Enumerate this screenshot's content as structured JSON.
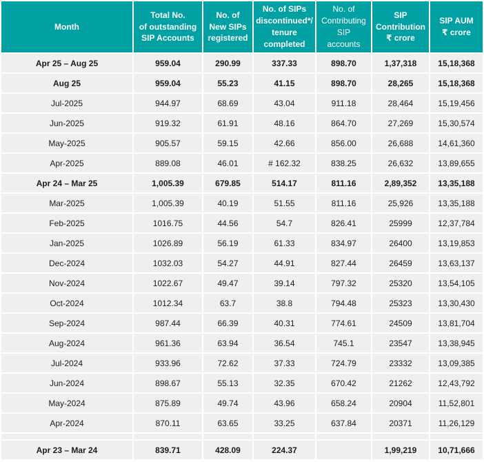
{
  "chart_data": {
    "type": "table",
    "columns": [
      {
        "id": "month",
        "lines": [
          "Month"
        ]
      },
      {
        "id": "outstanding",
        "lines": [
          "Total No.",
          "of outstanding",
          "SIP Accounts"
        ]
      },
      {
        "id": "new_sips",
        "lines": [
          "No. of",
          "New SIPs",
          "registered"
        ]
      },
      {
        "id": "discontinued",
        "lines": [
          "No. of SIPs",
          "discontinued*/",
          "tenure",
          "completed"
        ]
      },
      {
        "id": "contributing",
        "lines": [
          "No. of",
          "Contributing",
          "SIP",
          "accounts"
        ]
      },
      {
        "id": "contribution",
        "lines": [
          "SIP",
          "Contribution",
          "₹ crore"
        ]
      },
      {
        "id": "aum",
        "lines": [
          "SIP AUM",
          "₹ crore"
        ]
      }
    ],
    "rows": [
      {
        "month": "Apr 25 – Aug 25",
        "values": [
          "959.04",
          "290.99",
          "337.33",
          "898.70",
          "1,37,318",
          "15,18,368"
        ],
        "bold": true
      },
      {
        "month": "Aug 25",
        "values": [
          "959.04",
          "55.23",
          "41.15",
          "898.70",
          "28,265",
          "15,18,368"
        ],
        "bold": true
      },
      {
        "month": "Jul-2025",
        "values": [
          "944.97",
          "68.69",
          "43.04",
          "911.18",
          "28,464",
          "15,19,456"
        ],
        "bold": false
      },
      {
        "month": "Jun-2025",
        "values": [
          "919.32",
          "61.91",
          "48.16",
          "864.70",
          "27,269",
          "15,30,574"
        ],
        "bold": false
      },
      {
        "month": "May-2025",
        "values": [
          "905.57",
          "59.15",
          "42.66",
          "856.00",
          "26,688",
          "14,61,360"
        ],
        "bold": false
      },
      {
        "month": "Apr-2025",
        "values": [
          "889.08",
          "46.01",
          "# 162.32",
          "838.25",
          "26,632",
          "13,89,655"
        ],
        "bold": false
      },
      {
        "month": "Apr 24 – Mar 25",
        "values": [
          "1,005.39",
          "679.85",
          "514.17",
          "811.16",
          "2,89,352",
          "13,35,188"
        ],
        "bold": true
      },
      {
        "month": "Mar-2025",
        "values": [
          "1,005.39",
          "40.19",
          "51.55",
          "811.16",
          "25,926",
          "13,35,188"
        ],
        "bold": false
      },
      {
        "month": "Feb-2025",
        "values": [
          "1016.75",
          "44.56",
          "54.7",
          "826.41",
          "25999",
          "12,37,784"
        ],
        "bold": false
      },
      {
        "month": "Jan-2025",
        "values": [
          "1026.89",
          "56.19",
          "61.33",
          "834.97",
          "26400",
          "13,19,853"
        ],
        "bold": false
      },
      {
        "month": "Dec-2024",
        "values": [
          "1032.03",
          "54.27",
          "44.91",
          "827.44",
          "26459",
          "13,63,137"
        ],
        "bold": false
      },
      {
        "month": "Nov-2024",
        "values": [
          "1022.67",
          "49.47",
          "39.14",
          "797.32",
          "25320",
          "13,54,105"
        ],
        "bold": false
      },
      {
        "month": "Oct-2024",
        "values": [
          "1012.34",
          "63.7",
          "38.8",
          "794.48",
          "25323",
          "13,30,430"
        ],
        "bold": false
      },
      {
        "month": "Sep-2024",
        "values": [
          "987.44",
          "66.39",
          "40.31",
          "774.61",
          "24509",
          "13,81,704"
        ],
        "bold": false
      },
      {
        "month": "Aug-2024",
        "values": [
          "961.36",
          "63.94",
          "36.54",
          "745.1",
          "23547",
          "13,38,945"
        ],
        "bold": false
      },
      {
        "month": "Jul-2024",
        "values": [
          "933.96",
          "72.62",
          "37.33",
          "724.79",
          "23332",
          "13,09,385"
        ],
        "bold": false
      },
      {
        "month": "Jun-2024",
        "values": [
          "898.67",
          "55.13",
          "32.35",
          "670.42",
          "21262",
          "12,43,792"
        ],
        "bold": false
      },
      {
        "month": "May-2024",
        "values": [
          "875.89",
          "49.74",
          "43.96",
          "658.24",
          "20904",
          "11,52,801"
        ],
        "bold": false
      },
      {
        "month": "Apr-2024",
        "values": [
          "870.11",
          "63.65",
          "33.25",
          "637.84",
          "20371",
          "11,26,129"
        ],
        "bold": false
      },
      {
        "spacer": true
      },
      {
        "month": "Apr 23 – Mar 24",
        "values": [
          "839.71",
          "428.09",
          "224.37",
          "",
          "1,99,219",
          "10,71,666"
        ],
        "bold": true
      }
    ]
  },
  "colors": {
    "header_bg": "#00A0A3",
    "header_text": "#FFFFFF",
    "row_bg": "#EFEFEF",
    "body_text": "#1B1B1B",
    "divider": "#FFFFFF"
  }
}
